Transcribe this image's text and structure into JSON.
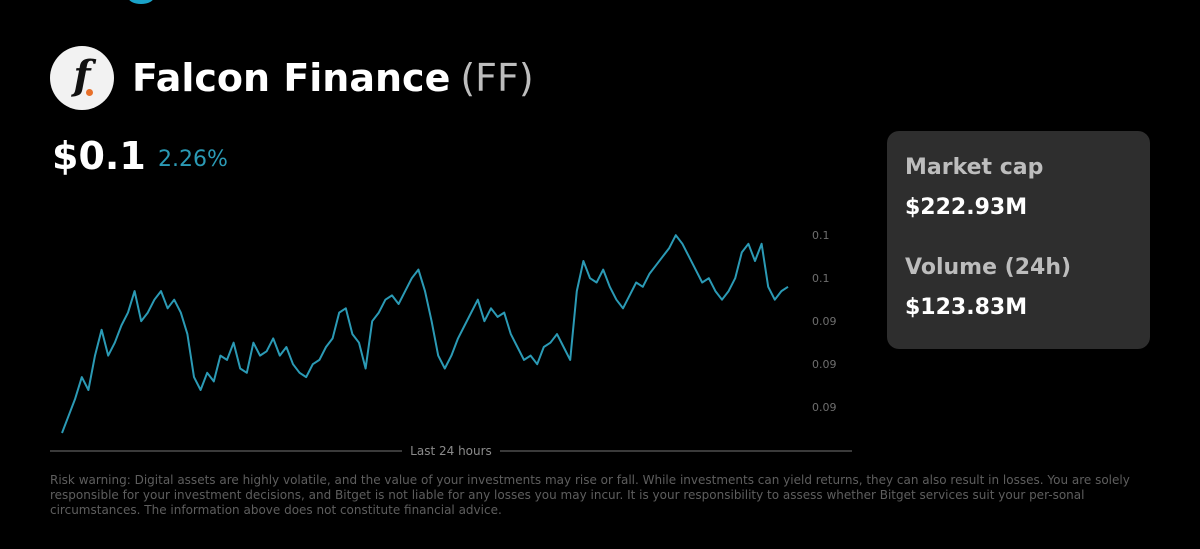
{
  "header": {
    "logo_letter": "f",
    "name": "Falcon Finance",
    "symbol": "(FF)"
  },
  "price": {
    "value": "$0.1",
    "change": "2.26%"
  },
  "stats": {
    "market_cap_label": "Market cap",
    "market_cap_value": "$222.93M",
    "volume_label": "Volume (24h)",
    "volume_value": "$123.83M"
  },
  "timeframe_label": "Last 24 hours",
  "disclaimer": "Risk warning: Digital assets are highly volatile, and the value of your investments may rise or fall. While investments can yield returns, they can also result in losses. You are solely responsible for your investment decisions, and Bitget is not liable for any losses you may incur. It is your responsibility to assess whether Bitget services suit your per-sonal circumstances. The information above does not constitute financial advice.",
  "colors": {
    "line": "#2b9ab5",
    "accent": "#1aa3c9",
    "card": "#2e2e2e"
  },
  "chart_data": {
    "type": "line",
    "y_tick_labels": [
      "0.1",
      "0.1",
      "0.09",
      "0.09",
      "0.09"
    ],
    "y_ticks": [
      0.1008,
      0.0998,
      0.0988,
      0.0978,
      0.0968
    ],
    "ylim": [
      0.0962,
      0.1012
    ],
    "grid": false,
    "legend": "none",
    "series": [
      {
        "values": [
          0.0962,
          0.0966,
          0.097,
          0.0975,
          0.0972,
          0.098,
          0.0986,
          0.098,
          0.0983,
          0.0987,
          0.099,
          0.0995,
          0.0988,
          0.099,
          0.0993,
          0.0995,
          0.0991,
          0.0993,
          0.099,
          0.0985,
          0.0975,
          0.0972,
          0.0976,
          0.0974,
          0.098,
          0.0979,
          0.0983,
          0.0977,
          0.0976,
          0.0983,
          0.098,
          0.0981,
          0.0984,
          0.098,
          0.0982,
          0.0978,
          0.0976,
          0.0975,
          0.0978,
          0.0979,
          0.0982,
          0.0984,
          0.099,
          0.0991,
          0.0985,
          0.0983,
          0.0977,
          0.0988,
          0.099,
          0.0993,
          0.0994,
          0.0992,
          0.0995,
          0.0998,
          0.1,
          0.0995,
          0.0988,
          0.098,
          0.0977,
          0.098,
          0.0984,
          0.0987,
          0.099,
          0.0993,
          0.0988,
          0.0991,
          0.0989,
          0.099,
          0.0985,
          0.0982,
          0.0979,
          0.098,
          0.0978,
          0.0982,
          0.0983,
          0.0985,
          0.0982,
          0.0979,
          0.0995,
          0.1002,
          0.0998,
          0.0997,
          0.1,
          0.0996,
          0.0993,
          0.0991,
          0.0994,
          0.0997,
          0.0996,
          0.0999,
          0.1001,
          0.1003,
          0.1005,
          0.1008,
          0.1006,
          0.1003,
          0.1,
          0.0997,
          0.0998,
          0.0995,
          0.0993,
          0.0995,
          0.0998,
          0.1004,
          0.1006,
          0.1002,
          0.1006,
          0.0996,
          0.0993,
          0.0995,
          0.0996
        ]
      }
    ]
  }
}
